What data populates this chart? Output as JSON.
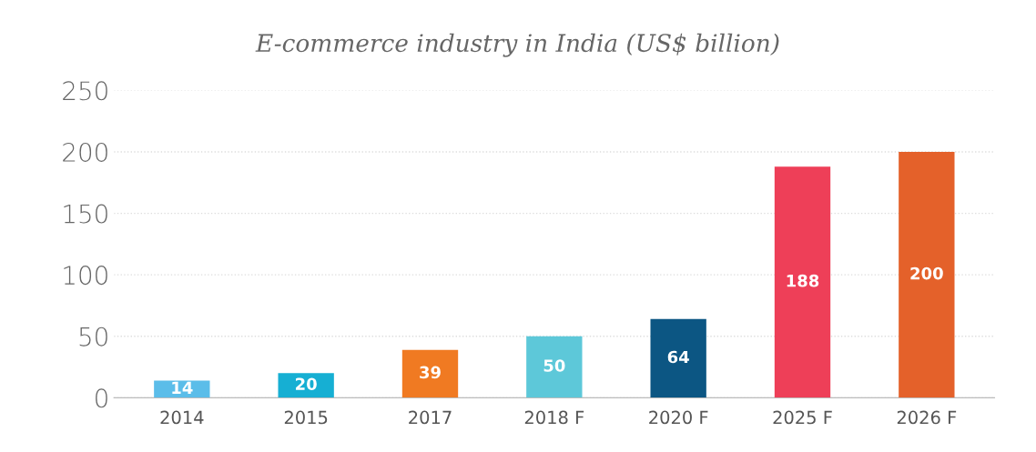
{
  "chart_data": {
    "type": "bar",
    "title": "E-commerce industry in India (US$ billion)",
    "categories": [
      "2014",
      "2015",
      "2017",
      "2018 F",
      "2020 F",
      "2025 F",
      "2026 F"
    ],
    "values": [
      14,
      20,
      39,
      50,
      64,
      188,
      200
    ],
    "colors": [
      "#5bbde9",
      "#16afd3",
      "#f07a22",
      "#5dc8d9",
      "#0c5683",
      "#ee3f58",
      "#e4612a"
    ],
    "ylim": [
      0,
      250
    ],
    "yticks": [
      0,
      50,
      100,
      150,
      200,
      250
    ],
    "grid": "y",
    "data_labels": true
  }
}
